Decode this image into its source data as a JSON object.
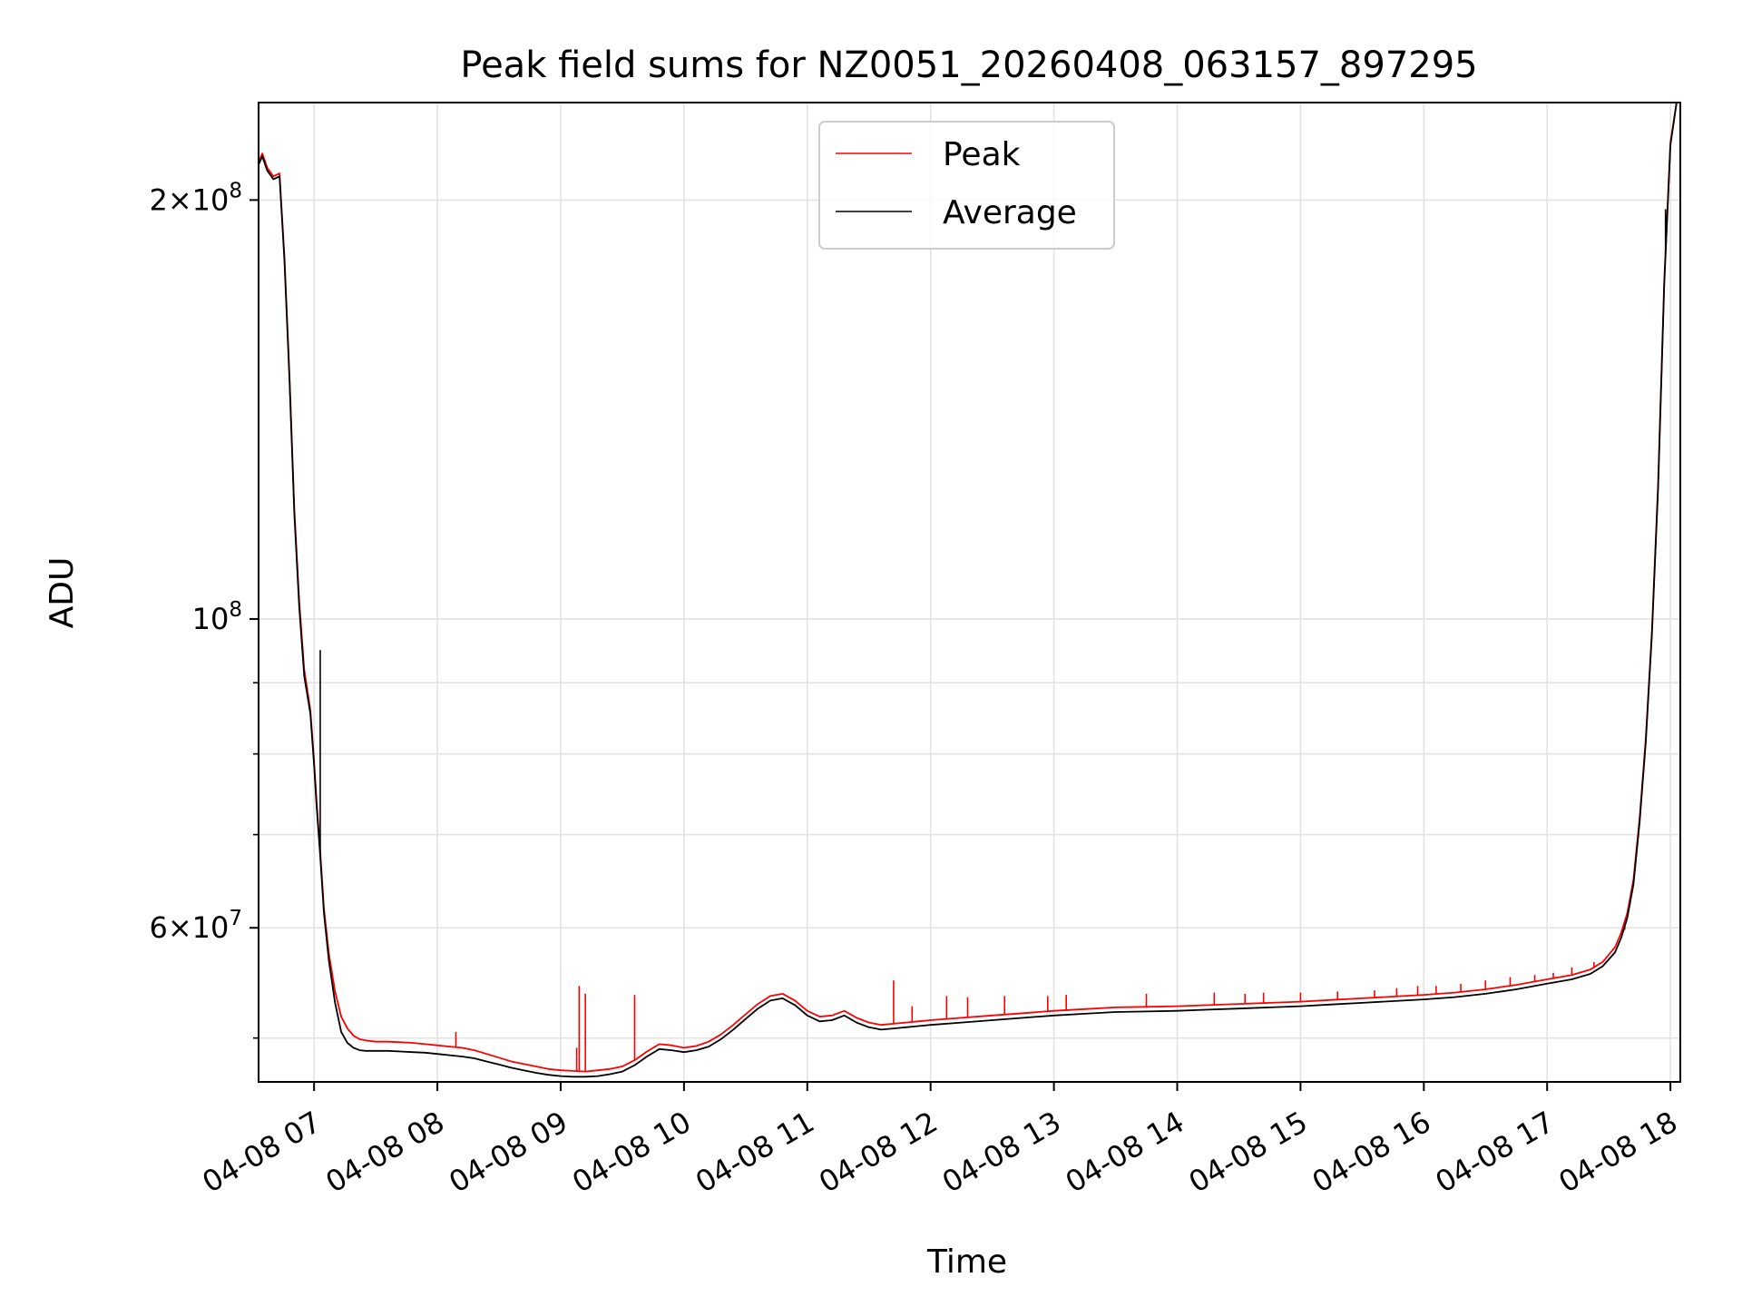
{
  "chart_data": {
    "type": "line",
    "title": "Peak field sums for NZ0051_20260408_063157_897295",
    "xlabel": "Time",
    "ylabel": "ADU",
    "yscale": "log",
    "xlim": [
      6.55,
      18.08
    ],
    "ylim": [
      46500000,
      235000000
    ],
    "grid": true,
    "legend_position": "upper center",
    "x_ticks": [
      {
        "value": 7,
        "label": "04-08 07"
      },
      {
        "value": 8,
        "label": "04-08 08"
      },
      {
        "value": 9,
        "label": "04-08 09"
      },
      {
        "value": 10,
        "label": "04-08 10"
      },
      {
        "value": 11,
        "label": "04-08 11"
      },
      {
        "value": 12,
        "label": "04-08 12"
      },
      {
        "value": 13,
        "label": "04-08 13"
      },
      {
        "value": 14,
        "label": "04-08 14"
      },
      {
        "value": 15,
        "label": "04-08 15"
      },
      {
        "value": 16,
        "label": "04-08 16"
      },
      {
        "value": 17,
        "label": "04-08 17"
      },
      {
        "value": 18,
        "label": "04-08 18"
      }
    ],
    "y_major_ticks": [
      {
        "value": 200000000,
        "mantissa": "2",
        "times": "×",
        "base": "10",
        "exp": "8"
      },
      {
        "value": 100000000,
        "mantissa": "",
        "times": "",
        "base": "10",
        "exp": "8"
      },
      {
        "value": 60000000,
        "mantissa": "6",
        "times": "×",
        "base": "10",
        "exp": "7"
      }
    ],
    "y_minor_ticks": [
      50000000,
      70000000,
      80000000,
      90000000
    ],
    "series": [
      {
        "name": "Peak",
        "color": "#ff0000",
        "x": [
          6.55,
          6.58,
          6.62,
          6.67,
          6.72,
          6.76,
          6.8,
          6.84,
          6.88,
          6.92,
          6.97,
          7.0,
          7.02,
          7.05,
          7.08,
          7.12,
          7.17,
          7.22,
          7.27,
          7.32,
          7.37,
          7.42,
          7.5,
          7.6,
          7.7,
          7.8,
          7.9,
          8.0,
          8.1,
          8.2,
          8.3,
          8.4,
          8.5,
          8.6,
          8.7,
          8.8,
          8.9,
          9.0,
          9.1,
          9.2,
          9.3,
          9.4,
          9.5,
          9.6,
          9.7,
          9.8,
          9.9,
          10.0,
          10.1,
          10.2,
          10.3,
          10.4,
          10.5,
          10.6,
          10.7,
          10.8,
          10.9,
          11.0,
          11.1,
          11.2,
          11.3,
          11.4,
          11.5,
          11.6,
          11.7,
          11.8,
          11.9,
          12.0,
          12.25,
          12.5,
          12.75,
          13.0,
          13.25,
          13.5,
          13.75,
          14.0,
          14.25,
          14.5,
          14.75,
          15.0,
          15.25,
          15.5,
          15.75,
          16.0,
          16.25,
          16.5,
          16.75,
          17.0,
          17.2,
          17.35,
          17.45,
          17.55,
          17.6,
          17.65,
          17.7,
          17.75,
          17.8,
          17.85,
          17.9,
          17.95,
          18.0,
          18.05
        ],
        "values": [
          213000000,
          216000000,
          211000000,
          208000000,
          209000000,
          182000000,
          150000000,
          120000000,
          103000000,
          92000000,
          86000000,
          79000000,
          74000000,
          68000000,
          62000000,
          57500000,
          54000000,
          51800000,
          50800000,
          50200000,
          49900000,
          49800000,
          49700000,
          49700000,
          49650000,
          49600000,
          49500000,
          49400000,
          49300000,
          49200000,
          49000000,
          48700000,
          48400000,
          48100000,
          47900000,
          47700000,
          47500000,
          47400000,
          47350000,
          47300000,
          47400000,
          47500000,
          47700000,
          48200000,
          48900000,
          49500000,
          49400000,
          49200000,
          49350000,
          49700000,
          50300000,
          51100000,
          52000000,
          52900000,
          53600000,
          53800000,
          53200000,
          52300000,
          51800000,
          51900000,
          52300000,
          51700000,
          51300000,
          51100000,
          51200000,
          51300000,
          51400000,
          51500000,
          51700000,
          51900000,
          52100000,
          52300000,
          52450000,
          52600000,
          52650000,
          52700000,
          52800000,
          52900000,
          53000000,
          53100000,
          53250000,
          53400000,
          53550000,
          53700000,
          53900000,
          54200000,
          54600000,
          55100000,
          55500000,
          56000000,
          56700000,
          58100000,
          59500000,
          61500000,
          65000000,
          72000000,
          82000000,
          98000000,
          125000000,
          175000000,
          220000000,
          235000000
        ],
        "spikes": [
          {
            "x": 8.15,
            "value": 50500000
          },
          {
            "x": 9.13,
            "value": 49200000
          },
          {
            "x": 9.15,
            "value": 54500000
          },
          {
            "x": 9.2,
            "value": 53800000
          },
          {
            "x": 9.6,
            "value": 53700000
          },
          {
            "x": 11.7,
            "value": 55000000
          },
          {
            "x": 11.85,
            "value": 52700000
          },
          {
            "x": 12.13,
            "value": 53600000
          },
          {
            "x": 12.3,
            "value": 53500000
          },
          {
            "x": 12.6,
            "value": 53600000
          },
          {
            "x": 12.95,
            "value": 53600000
          },
          {
            "x": 13.1,
            "value": 53700000
          },
          {
            "x": 13.75,
            "value": 53800000
          },
          {
            "x": 14.3,
            "value": 53900000
          },
          {
            "x": 14.55,
            "value": 53800000
          },
          {
            "x": 14.7,
            "value": 53900000
          },
          {
            "x": 15.0,
            "value": 53900000
          },
          {
            "x": 15.3,
            "value": 54000000
          },
          {
            "x": 15.6,
            "value": 54100000
          },
          {
            "x": 15.78,
            "value": 54300000
          },
          {
            "x": 15.95,
            "value": 54500000
          },
          {
            "x": 16.1,
            "value": 54500000
          },
          {
            "x": 16.3,
            "value": 54700000
          },
          {
            "x": 16.5,
            "value": 55000000
          },
          {
            "x": 16.7,
            "value": 55300000
          },
          {
            "x": 16.9,
            "value": 55500000
          },
          {
            "x": 17.05,
            "value": 55700000
          },
          {
            "x": 17.2,
            "value": 56200000
          },
          {
            "x": 17.38,
            "value": 56700000
          },
          {
            "x": 17.47,
            "value": 56900000
          },
          {
            "x": 17.63,
            "value": 59800000
          }
        ]
      },
      {
        "name": "Average",
        "color": "#000000",
        "x": [
          6.55,
          6.58,
          6.62,
          6.67,
          6.72,
          6.76,
          6.8,
          6.84,
          6.88,
          6.92,
          6.97,
          7.0,
          7.02,
          7.05,
          7.08,
          7.12,
          7.17,
          7.22,
          7.27,
          7.32,
          7.37,
          7.42,
          7.5,
          7.6,
          7.7,
          7.8,
          7.9,
          8.0,
          8.1,
          8.2,
          8.3,
          8.4,
          8.5,
          8.6,
          8.7,
          8.8,
          8.9,
          9.0,
          9.1,
          9.2,
          9.3,
          9.4,
          9.5,
          9.6,
          9.7,
          9.8,
          9.9,
          10.0,
          10.1,
          10.2,
          10.3,
          10.4,
          10.5,
          10.6,
          10.7,
          10.8,
          10.9,
          11.0,
          11.1,
          11.2,
          11.3,
          11.4,
          11.5,
          11.6,
          11.7,
          11.8,
          11.9,
          12.0,
          12.25,
          12.5,
          12.75,
          13.0,
          13.25,
          13.5,
          13.75,
          14.0,
          14.25,
          14.5,
          14.75,
          15.0,
          15.25,
          15.5,
          15.75,
          16.0,
          16.25,
          16.5,
          16.75,
          17.0,
          17.2,
          17.35,
          17.45,
          17.55,
          17.6,
          17.65,
          17.7,
          17.75,
          17.8,
          17.85,
          17.9,
          17.95,
          18.0,
          18.05
        ],
        "values": [
          212000000,
          215000000,
          210000000,
          207000000,
          208000000,
          181000000,
          149000000,
          119000000,
          102000000,
          91000000,
          85500000,
          78500000,
          73500000,
          67500000,
          61500000,
          56800000,
          53000000,
          50500000,
          49600000,
          49200000,
          49000000,
          48950000,
          48950000,
          48950000,
          48900000,
          48850000,
          48800000,
          48700000,
          48600000,
          48500000,
          48350000,
          48100000,
          47850000,
          47600000,
          47400000,
          47200000,
          47050000,
          46950000,
          46900000,
          46900000,
          46950000,
          47100000,
          47300000,
          47800000,
          48500000,
          49100000,
          49000000,
          48850000,
          49000000,
          49300000,
          49900000,
          50700000,
          51600000,
          52500000,
          53200000,
          53400000,
          52800000,
          51900000,
          51400000,
          51500000,
          51900000,
          51300000,
          50900000,
          50700000,
          50800000,
          50900000,
          51000000,
          51100000,
          51300000,
          51500000,
          51700000,
          51900000,
          52050000,
          52200000,
          52250000,
          52300000,
          52400000,
          52500000,
          52600000,
          52700000,
          52850000,
          53000000,
          53150000,
          53300000,
          53500000,
          53800000,
          54200000,
          54700000,
          55100000,
          55600000,
          56300000,
          57600000,
          59000000,
          61000000,
          64500000,
          71500000,
          81500000,
          97500000,
          124000000,
          174000000,
          219000000,
          235000000
        ],
        "spikes": [
          {
            "x": 7.05,
            "value": 95000000
          },
          {
            "x": 17.96,
            "value": 197000000
          }
        ]
      }
    ]
  }
}
